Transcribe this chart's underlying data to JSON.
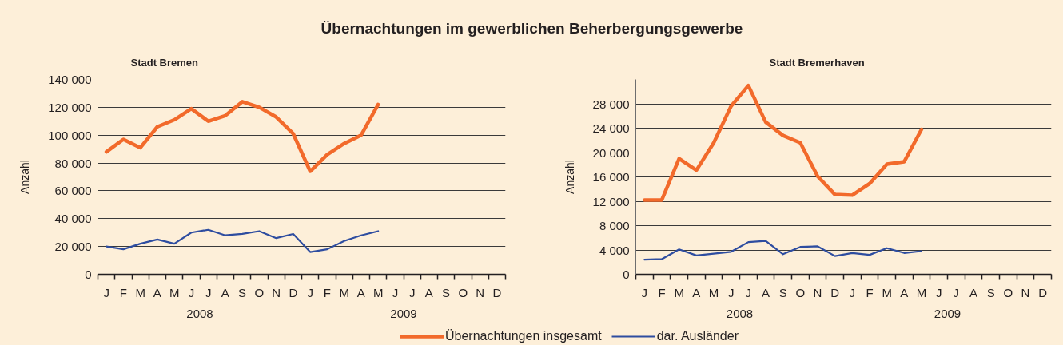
{
  "chart_data": [
    {
      "type": "line",
      "title": "Übernachtungen im gewerblichen Beherbergungsgewerbe",
      "subtitle": "Stadt Bremen",
      "ylabel": "Anzahl",
      "categories": [
        "J",
        "F",
        "M",
        "A",
        "M",
        "J",
        "J",
        "A",
        "S",
        "O",
        "N",
        "D",
        "J",
        "F",
        "M",
        "A",
        "M",
        "J",
        "J",
        "A",
        "S",
        "O",
        "N",
        "D"
      ],
      "annotations": [
        "2008",
        "2009"
      ],
      "series": [
        {
          "name": "Übernachtungen insgesamt",
          "color": "#f26a2b",
          "values": [
            88000,
            97000,
            91000,
            106000,
            111000,
            119000,
            110000,
            114000,
            124000,
            120000,
            113000,
            101000,
            74000,
            86000,
            94000,
            100000,
            122000,
            null,
            null,
            null,
            null,
            null,
            null,
            null
          ]
        },
        {
          "name": "dar. Ausländer",
          "color": "#2e4da0",
          "values": [
            20000,
            18000,
            22000,
            25000,
            22000,
            30000,
            32000,
            28000,
            29000,
            31000,
            26000,
            29000,
            16000,
            18000,
            24000,
            28000,
            31000,
            null,
            null,
            null,
            null,
            null,
            null,
            null
          ]
        }
      ],
      "ylim": [
        0,
        140000
      ],
      "yticks": [
        0,
        {
          "value": 20000,
          "label": "20 000"
        },
        {
          "value": 40000,
          "label": "40 000"
        },
        {
          "value": 60000,
          "label": "60 000"
        },
        {
          "value": 80000,
          "label": "80 000"
        },
        {
          "value": 100000,
          "label": "100 000"
        },
        {
          "value": 120000,
          "label": "120 000"
        },
        {
          "value": 140000,
          "label": "140 000"
        }
      ],
      "grid": "y",
      "legend": "bottom"
    },
    {
      "type": "line",
      "subtitle": "Stadt Bremerhaven",
      "ylabel": "Anzahl",
      "categories": [
        "J",
        "F",
        "M",
        "A",
        "M",
        "J",
        "J",
        "A",
        "S",
        "O",
        "N",
        "D",
        "J",
        "F",
        "M",
        "A",
        "M",
        "J",
        "J",
        "A",
        "S",
        "O",
        "N",
        "D"
      ],
      "annotations": [
        "2008",
        "2009"
      ],
      "series": [
        {
          "name": "Übernachtungen insgesamt",
          "color": "#f26a2b",
          "values": [
            12200,
            12200,
            19000,
            17100,
            21600,
            27600,
            31000,
            25000,
            22800,
            21600,
            16100,
            13100,
            13000,
            14900,
            18100,
            18500,
            23800,
            null,
            null,
            null,
            null,
            null,
            null,
            null
          ]
        },
        {
          "name": "dar. Ausländer",
          "color": "#2e4da0",
          "values": [
            2400,
            2500,
            4100,
            3100,
            3400,
            3700,
            5300,
            5500,
            3300,
            4500,
            4600,
            3000,
            3500,
            3200,
            4300,
            3500,
            3800,
            null,
            null,
            null,
            null,
            null,
            null,
            null
          ]
        }
      ],
      "ylim": [
        0,
        32000
      ],
      "yticks": [
        0,
        {
          "value": 4000,
          "label": "4 000"
        },
        {
          "value": 8000,
          "label": "8 000"
        },
        {
          "value": 12000,
          "label": "12 000"
        },
        {
          "value": 16000,
          "label": "16 000"
        },
        {
          "value": 20000,
          "label": "20 000"
        },
        {
          "value": 24000,
          "label": "24 000"
        },
        {
          "value": 28000,
          "label": "28 000"
        }
      ],
      "grid": "y",
      "legend": "bottom"
    }
  ]
}
